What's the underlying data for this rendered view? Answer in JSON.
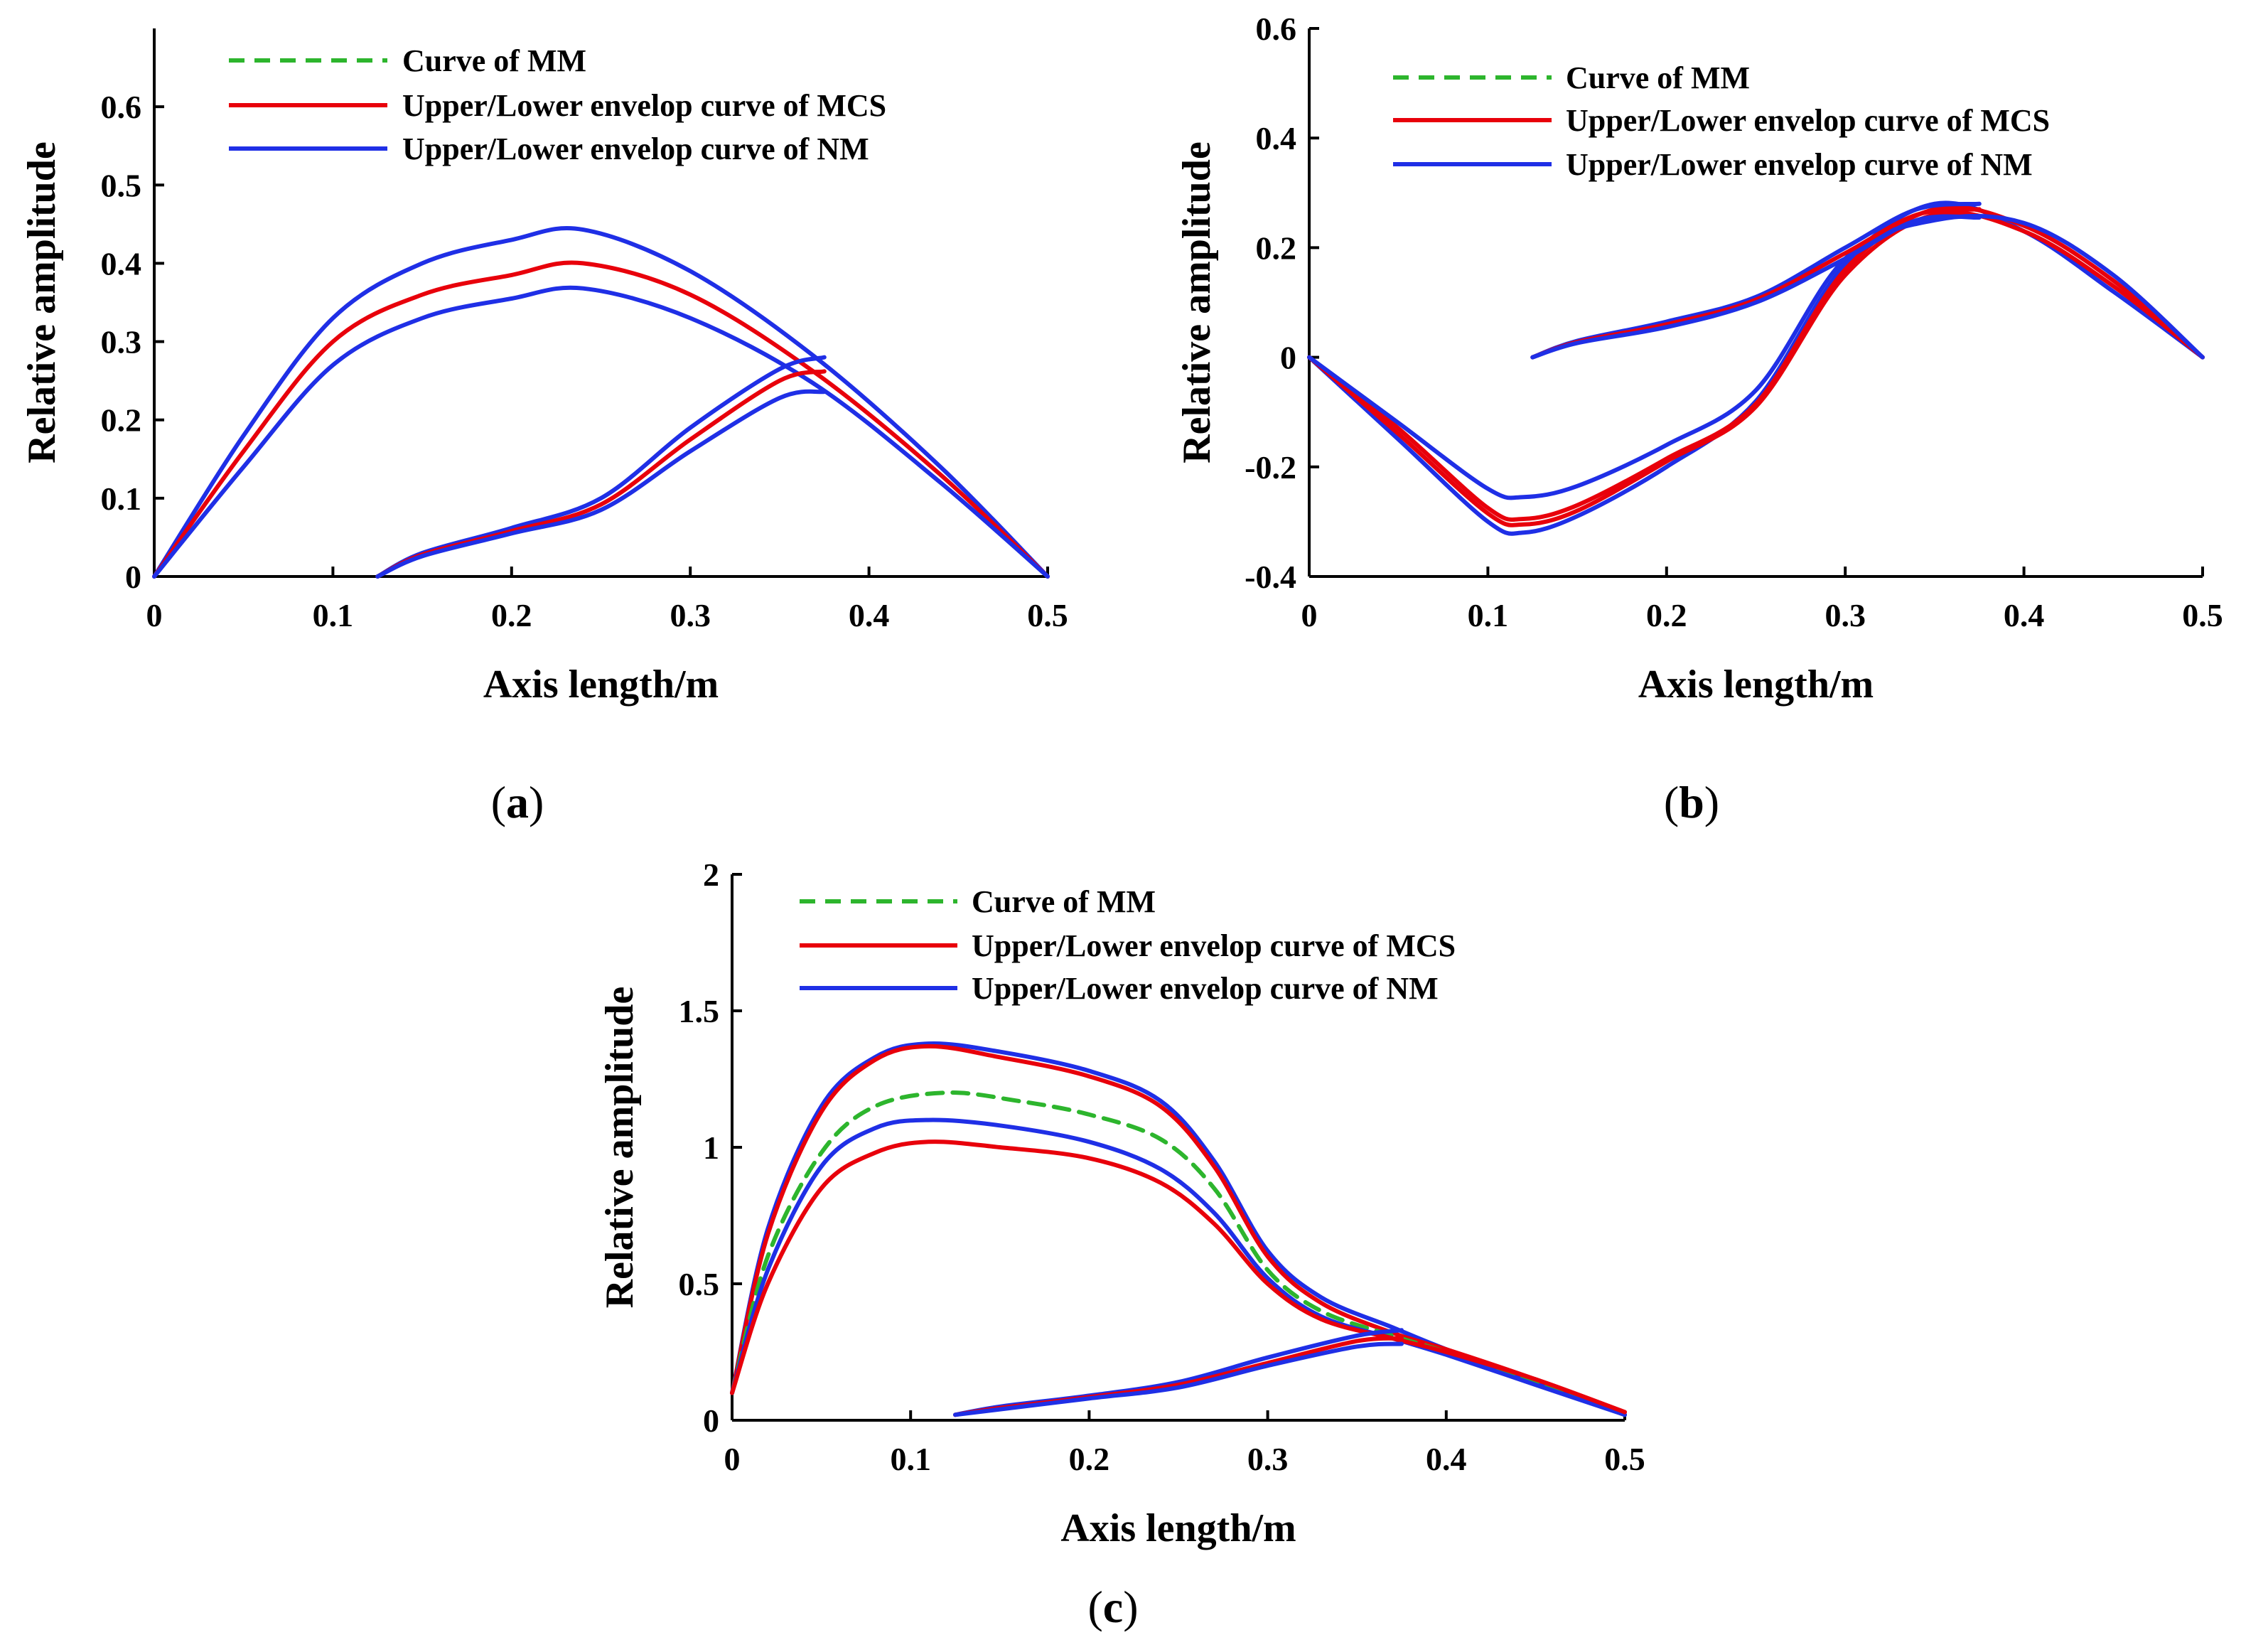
{
  "figure": {
    "panels": [
      "a",
      "b",
      "c"
    ]
  },
  "chart_data": [
    {
      "id": "a",
      "caption": "a",
      "type": "line",
      "xlabel": "Axis length/m",
      "ylabel": "Relative amplitude",
      "xlim": [
        0,
        0.5
      ],
      "ylim": [
        0,
        0.7
      ],
      "xticks": [
        "0",
        "0.1",
        "0.2",
        "0.3",
        "0.4",
        "0.5"
      ],
      "yticks": [
        "0",
        "0.1",
        "0.2",
        "0.3",
        "0.4",
        "0.5",
        "0.6"
      ],
      "legend": [
        {
          "label": "Curve of MM",
          "color": "#2db52d",
          "style": "dashed"
        },
        {
          "label": "Upper/Lower envelop curve of MCS",
          "color": "#e8000b",
          "style": "solid"
        },
        {
          "label": "Upper/Lower envelop curve of NM",
          "color": "#1f2fe6",
          "style": "solid"
        }
      ],
      "series": [
        {
          "name": "NM upper",
          "color": "#1f2fe6",
          "style": "solid",
          "x": [
            0,
            0.05,
            0.1,
            0.15,
            0.2,
            0.24,
            0.3,
            0.37,
            0.44,
            0.5
          ],
          "y": [
            0,
            0.18,
            0.33,
            0.4,
            0.43,
            0.443,
            0.39,
            0.28,
            0.14,
            0
          ]
        },
        {
          "name": "MCS upper",
          "color": "#e8000b",
          "style": "solid",
          "x": [
            0,
            0.05,
            0.1,
            0.15,
            0.2,
            0.24,
            0.3,
            0.37,
            0.44,
            0.5
          ],
          "y": [
            0,
            0.16,
            0.3,
            0.36,
            0.385,
            0.4,
            0.36,
            0.26,
            0.13,
            0
          ]
        },
        {
          "name": "NM lower",
          "color": "#1f2fe6",
          "style": "solid",
          "x": [
            0,
            0.05,
            0.1,
            0.15,
            0.2,
            0.24,
            0.3,
            0.37,
            0.44,
            0.5
          ],
          "y": [
            0,
            0.14,
            0.27,
            0.33,
            0.355,
            0.368,
            0.33,
            0.245,
            0.12,
            0
          ]
        },
        {
          "name": "NM loop upper",
          "color": "#1f2fe6",
          "style": "solid",
          "x": [
            0.125,
            0.15,
            0.2,
            0.25,
            0.3,
            0.35,
            0.375
          ],
          "y": [
            0,
            0.03,
            0.062,
            0.1,
            0.19,
            0.265,
            0.28
          ]
        },
        {
          "name": "MCS loop",
          "color": "#e8000b",
          "style": "solid",
          "x": [
            0.125,
            0.15,
            0.2,
            0.25,
            0.3,
            0.35,
            0.375
          ],
          "y": [
            0,
            0.028,
            0.058,
            0.092,
            0.175,
            0.25,
            0.262
          ]
        },
        {
          "name": "NM loop lower",
          "color": "#1f2fe6",
          "style": "solid",
          "x": [
            0.125,
            0.15,
            0.2,
            0.25,
            0.3,
            0.35,
            0.375
          ],
          "y": [
            0,
            0.026,
            0.055,
            0.085,
            0.16,
            0.228,
            0.236
          ]
        }
      ]
    },
    {
      "id": "b",
      "caption": "b",
      "type": "line",
      "xlabel": "Axis length/m",
      "ylabel": "Relative amplitude",
      "xlim": [
        0,
        0.5
      ],
      "ylim": [
        -0.4,
        0.6
      ],
      "xticks": [
        "0",
        "0.1",
        "0.2",
        "0.3",
        "0.4",
        "0.5"
      ],
      "yticks": [
        "-0.4",
        "-0.2",
        "0",
        "0.2",
        "0.4",
        "0.6"
      ],
      "legend": [
        {
          "label": "Curve of MM",
          "color": "#2db52d",
          "style": "dashed"
        },
        {
          "label": "Upper/Lower envelop curve of MCS",
          "color": "#e8000b",
          "style": "solid"
        },
        {
          "label": "Upper/Lower envelop curve of NM",
          "color": "#1f2fe6",
          "style": "solid"
        }
      ],
      "series": [
        {
          "name": "NM main a",
          "color": "#1f2fe6",
          "style": "solid",
          "x": [
            0,
            0.05,
            0.1,
            0.12,
            0.15,
            0.2,
            0.25,
            0.3,
            0.35,
            0.4,
            0.45,
            0.5
          ],
          "y": [
            0,
            -0.15,
            -0.3,
            -0.32,
            -0.29,
            -0.2,
            -0.08,
            0.17,
            0.28,
            0.23,
            0.12,
            0
          ]
        },
        {
          "name": "MCS main a",
          "color": "#e8000b",
          "style": "solid",
          "x": [
            0,
            0.05,
            0.1,
            0.12,
            0.15,
            0.2,
            0.25,
            0.3,
            0.35,
            0.4,
            0.45,
            0.5
          ],
          "y": [
            0,
            -0.14,
            -0.285,
            -0.305,
            -0.28,
            -0.19,
            -0.09,
            0.15,
            0.26,
            0.23,
            0.13,
            0
          ]
        },
        {
          "name": "MCS main b",
          "color": "#e8000b",
          "style": "solid",
          "x": [
            0,
            0.05,
            0.1,
            0.12,
            0.15,
            0.2,
            0.25,
            0.3,
            0.35,
            0.4,
            0.45,
            0.5
          ],
          "y": [
            0,
            -0.13,
            -0.275,
            -0.295,
            -0.27,
            -0.185,
            -0.085,
            0.16,
            0.27,
            0.24,
            0.14,
            0
          ]
        },
        {
          "name": "NM main b",
          "color": "#1f2fe6",
          "style": "solid",
          "x": [
            0,
            0.05,
            0.1,
            0.12,
            0.15,
            0.2,
            0.25,
            0.3,
            0.35,
            0.4,
            0.45,
            0.5
          ],
          "y": [
            0,
            -0.12,
            -0.24,
            -0.255,
            -0.235,
            -0.16,
            -0.06,
            0.18,
            0.25,
            0.245,
            0.15,
            0
          ]
        },
        {
          "name": "NM loop a",
          "color": "#1f2fe6",
          "style": "solid",
          "x": [
            0.125,
            0.15,
            0.2,
            0.25,
            0.3,
            0.34,
            0.375
          ],
          "y": [
            0,
            0.03,
            0.065,
            0.11,
            0.2,
            0.27,
            0.28
          ]
        },
        {
          "name": "MCS loop",
          "color": "#e8000b",
          "style": "solid",
          "x": [
            0.125,
            0.15,
            0.2,
            0.25,
            0.3,
            0.34,
            0.375
          ],
          "y": [
            0,
            0.028,
            0.06,
            0.105,
            0.19,
            0.26,
            0.27
          ]
        },
        {
          "name": "NM loop b",
          "color": "#1f2fe6",
          "style": "solid",
          "x": [
            0.125,
            0.15,
            0.2,
            0.25,
            0.3,
            0.34,
            0.375
          ],
          "y": [
            0,
            0.026,
            0.055,
            0.1,
            0.18,
            0.25,
            0.255
          ]
        }
      ]
    },
    {
      "id": "c",
      "caption": "c",
      "type": "line",
      "xlabel": "Axis length/m",
      "ylabel": "Relative amplitude",
      "xlim": [
        0,
        0.5
      ],
      "ylim": [
        0,
        2
      ],
      "xticks": [
        "0",
        "0.1",
        "0.2",
        "0.3",
        "0.4",
        "0.5"
      ],
      "yticks": [
        "0",
        "0.5",
        "1",
        "1.5",
        "2"
      ],
      "legend": [
        {
          "label": "Curve of MM",
          "color": "#2db52d",
          "style": "dashed"
        },
        {
          "label": "Upper/Lower envelop curve of MCS",
          "color": "#e8000b",
          "style": "solid"
        },
        {
          "label": "Upper/Lower envelop curve of NM",
          "color": "#1f2fe6",
          "style": "solid"
        }
      ],
      "series": [
        {
          "name": "NM upper",
          "color": "#1f2fe6",
          "style": "solid",
          "x": [
            0,
            0.02,
            0.05,
            0.08,
            0.11,
            0.15,
            0.2,
            0.24,
            0.27,
            0.3,
            0.33,
            0.37,
            0.4,
            0.45,
            0.5
          ],
          "y": [
            0.1,
            0.7,
            1.15,
            1.33,
            1.38,
            1.35,
            1.28,
            1.17,
            0.95,
            0.62,
            0.45,
            0.34,
            0.26,
            0.14,
            0.02
          ]
        },
        {
          "name": "MCS upper",
          "color": "#e8000b",
          "style": "solid",
          "x": [
            0,
            0.02,
            0.05,
            0.08,
            0.11,
            0.15,
            0.2,
            0.24,
            0.27,
            0.3,
            0.33,
            0.37,
            0.4,
            0.45,
            0.5
          ],
          "y": [
            0.1,
            0.68,
            1.13,
            1.32,
            1.37,
            1.33,
            1.26,
            1.15,
            0.93,
            0.6,
            0.43,
            0.32,
            0.26,
            0.15,
            0.03
          ]
        },
        {
          "name": "MM",
          "color": "#2db52d",
          "style": "dashed",
          "x": [
            0,
            0.02,
            0.05,
            0.08,
            0.12,
            0.16,
            0.2,
            0.24,
            0.27,
            0.3,
            0.33,
            0.37,
            0.4,
            0.45,
            0.5
          ],
          "y": [
            0.1,
            0.6,
            0.98,
            1.15,
            1.2,
            1.17,
            1.12,
            1.03,
            0.85,
            0.55,
            0.4,
            0.31,
            0.25,
            0.14,
            0.02
          ]
        },
        {
          "name": "NM lower",
          "color": "#1f2fe6",
          "style": "solid",
          "x": [
            0,
            0.02,
            0.05,
            0.08,
            0.11,
            0.15,
            0.2,
            0.24,
            0.27,
            0.3,
            0.33,
            0.37,
            0.4,
            0.45,
            0.5
          ],
          "y": [
            0.1,
            0.55,
            0.93,
            1.07,
            1.1,
            1.08,
            1.02,
            0.92,
            0.76,
            0.52,
            0.38,
            0.3,
            0.24,
            0.13,
            0.02
          ]
        },
        {
          "name": "MCS lower",
          "color": "#e8000b",
          "style": "solid",
          "x": [
            0,
            0.02,
            0.05,
            0.08,
            0.11,
            0.15,
            0.2,
            0.24,
            0.27,
            0.3,
            0.33,
            0.37,
            0.4,
            0.45,
            0.5
          ],
          "y": [
            0.1,
            0.5,
            0.85,
            0.98,
            1.02,
            1.0,
            0.96,
            0.87,
            0.72,
            0.5,
            0.37,
            0.3,
            0.25,
            0.15,
            0.03
          ]
        },
        {
          "name": "NM loop upper",
          "color": "#1f2fe6",
          "style": "solid",
          "x": [
            0.125,
            0.15,
            0.2,
            0.25,
            0.3,
            0.35,
            0.375
          ],
          "y": [
            0.02,
            0.05,
            0.09,
            0.14,
            0.23,
            0.31,
            0.33
          ]
        },
        {
          "name": "MCS loop",
          "color": "#e8000b",
          "style": "solid",
          "x": [
            0.125,
            0.15,
            0.2,
            0.25,
            0.3,
            0.35,
            0.375
          ],
          "y": [
            0.02,
            0.045,
            0.085,
            0.13,
            0.21,
            0.29,
            0.3
          ]
        },
        {
          "name": "NM loop lower",
          "color": "#1f2fe6",
          "style": "solid",
          "x": [
            0.125,
            0.15,
            0.2,
            0.25,
            0.3,
            0.35,
            0.375
          ],
          "y": [
            0.02,
            0.04,
            0.08,
            0.12,
            0.2,
            0.27,
            0.28
          ]
        }
      ]
    }
  ]
}
